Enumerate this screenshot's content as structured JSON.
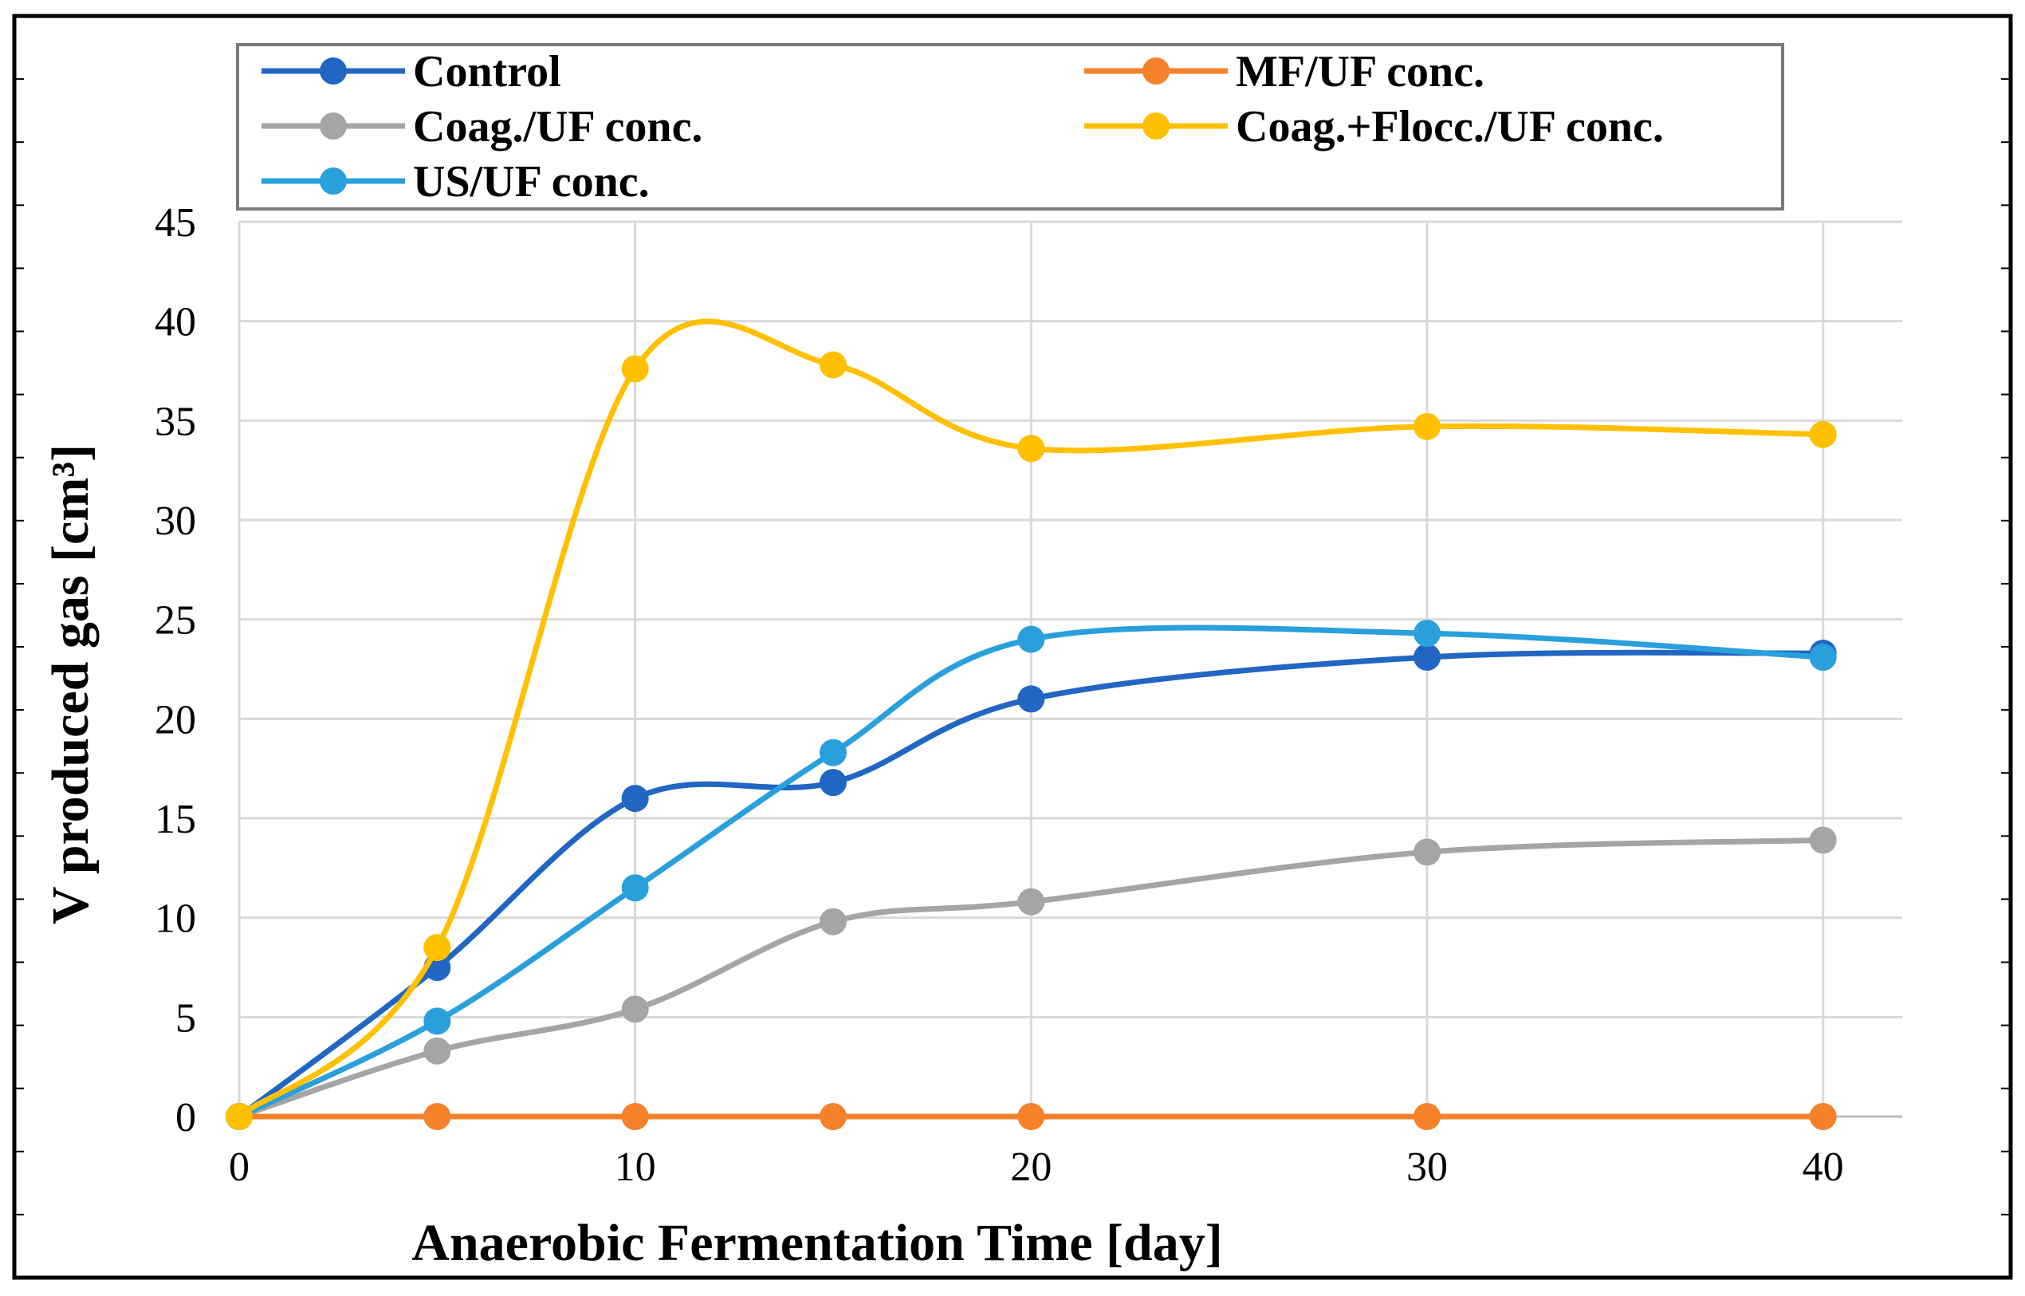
{
  "chart_data": {
    "type": "line",
    "title": "",
    "xlabel": "Anaerobic Fermentation Time [day]",
    "ylabel": "V produced gas [cm³]",
    "xlim": [
      0,
      42
    ],
    "ylim": [
      0,
      45
    ],
    "xticks": [
      0,
      10,
      20,
      30,
      40
    ],
    "xtick_labels": [
      "0",
      "10",
      "20",
      "30",
      "40"
    ],
    "yticks": [
      0,
      5,
      10,
      15,
      20,
      25,
      30,
      35,
      40,
      45
    ],
    "ytick_labels": [
      "0",
      "5",
      "10",
      "15",
      "20",
      "25",
      "30",
      "35",
      "40",
      "45"
    ],
    "grid": true,
    "smooth": true,
    "legend_position": "top",
    "x": [
      0,
      5,
      10,
      15,
      20,
      30,
      40
    ],
    "series": [
      {
        "name": "Control",
        "color": "#2166c3",
        "values": [
          0,
          7.5,
          16,
          16.8,
          21,
          23.1,
          23.3
        ]
      },
      {
        "name": "MF/UF conc.",
        "color": "#f5812b",
        "values": [
          0,
          0,
          0,
          0,
          0,
          0,
          0
        ]
      },
      {
        "name": "Coag./UF conc.",
        "color": "#a5a5a5",
        "values": [
          0,
          3.3,
          5.4,
          9.8,
          10.8,
          13.3,
          13.9
        ]
      },
      {
        "name": "Coag.+Flocc./UF conc.",
        "color": "#ffc000",
        "values": [
          0,
          8.5,
          37.6,
          37.8,
          33.6,
          34.7,
          34.3
        ]
      },
      {
        "name": "US/UF conc.",
        "color": "#29a0dc",
        "values": [
          0,
          4.8,
          11.5,
          18.3,
          24,
          24.3,
          23.1
        ]
      }
    ],
    "draw_order": [
      2,
      0,
      1,
      4,
      3
    ]
  }
}
